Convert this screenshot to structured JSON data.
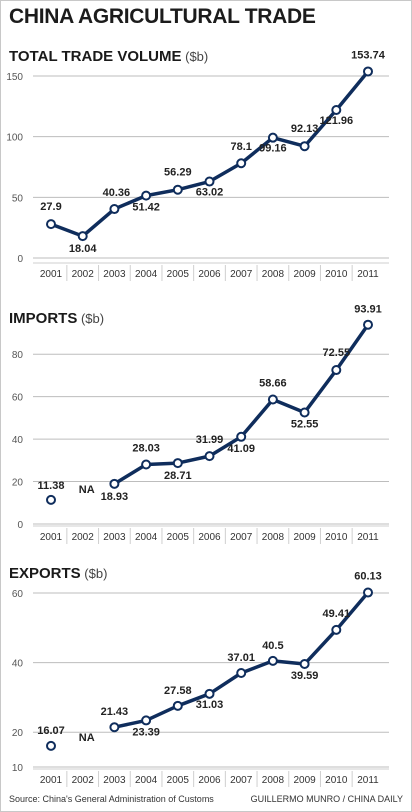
{
  "title": "CHINA AGRICULTURAL TRADE",
  "footer": {
    "source": "Source: China's General Administration of Customs",
    "credit": "GUILLERMO MUNRO / CHINA DAILY"
  },
  "colors": {
    "line": "#0f2d5c",
    "grid": "#bdbdbd",
    "text": "#222222",
    "accent": "#0f2d5c"
  },
  "chart_data": [
    {
      "type": "line",
      "id": "total",
      "title": "TOTAL TRADE VOLUME",
      "unit": "($b)",
      "x": [
        "2001",
        "2002",
        "2003",
        "2004",
        "2005",
        "2006",
        "2007",
        "2008",
        "2009",
        "2010",
        "2011"
      ],
      "values": [
        27.9,
        18.04,
        40.36,
        51.42,
        56.29,
        63.02,
        78.1,
        99.16,
        92.13,
        121.96,
        153.74
      ],
      "labels": [
        "27.9",
        "18.04",
        "40.36",
        "51.42",
        "56.29",
        "63.02",
        "78.1",
        "99.16",
        "92.13",
        "121.96",
        "153.74"
      ],
      "ylim": [
        0,
        150
      ],
      "yticks": [
        0,
        50,
        100,
        150
      ],
      "grid": true
    },
    {
      "type": "line",
      "id": "imports",
      "title": "IMPORTS",
      "unit": "($b)",
      "x": [
        "2001",
        "2002",
        "2003",
        "2004",
        "2005",
        "2006",
        "2007",
        "2008",
        "2009",
        "2010",
        "2011"
      ],
      "values": [
        11.38,
        null,
        18.93,
        28.03,
        28.71,
        31.99,
        41.09,
        58.66,
        52.55,
        72.55,
        93.91
      ],
      "labels": [
        "11.38",
        "NA",
        "18.93",
        "28.03",
        "28.71",
        "31.99",
        "41.09",
        "58.66",
        "52.55",
        "72.55",
        "93.91"
      ],
      "ylim": [
        0,
        90
      ],
      "yticks": [
        0,
        20,
        40,
        60,
        80
      ],
      "grid": true
    },
    {
      "type": "line",
      "id": "exports",
      "title": "EXPORTS",
      "unit": "($b)",
      "x": [
        "2001",
        "2002",
        "2003",
        "2004",
        "2005",
        "2006",
        "2007",
        "2008",
        "2009",
        "2010",
        "2011"
      ],
      "values": [
        16.07,
        null,
        21.43,
        23.39,
        27.58,
        31.03,
        37.01,
        40.5,
        39.59,
        49.41,
        60.13
      ],
      "labels": [
        "16.07",
        "NA",
        "21.43",
        "23.39",
        "27.58",
        "31.03",
        "37.01",
        "40.5",
        "39.59",
        "49.41",
        "60.13"
      ],
      "ylim": [
        10,
        60
      ],
      "yticks": [
        10,
        20,
        40,
        60
      ],
      "grid": true
    }
  ]
}
